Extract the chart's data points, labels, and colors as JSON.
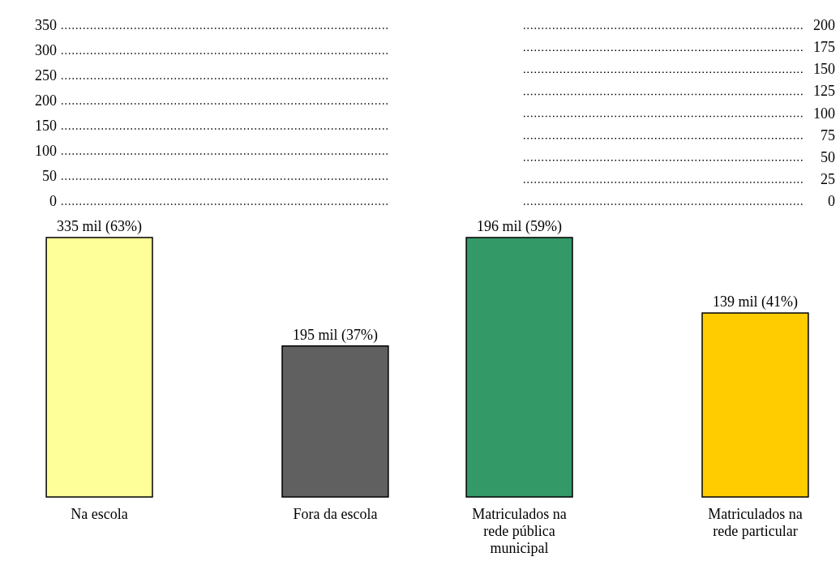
{
  "chart_data": [
    {
      "type": "bar",
      "categories": [
        "Na escola",
        "Fora da escola"
      ],
      "values": [
        335,
        195
      ],
      "colors": [
        "#ffff99",
        "#606060"
      ],
      "value_labels": [
        "335 mil (63%)",
        "195 mil (37%)"
      ],
      "annotations": [
        "350",
        "300",
        "250",
        "200",
        "150",
        "100",
        "50",
        "0"
      ]
    },
    {
      "type": "bar",
      "categories": [
        "Matriculados na rede pública municipal",
        "Matriculados na rede particular"
      ],
      "values": [
        196,
        139
      ],
      "colors": [
        "#339966",
        "#ffcc00"
      ],
      "value_labels": [
        "196 mil (59%)",
        "139 mil (41%)"
      ],
      "annotations": [
        "200",
        "175",
        "150",
        "125",
        "100",
        "75",
        "50",
        "25",
        "0"
      ]
    }
  ]
}
